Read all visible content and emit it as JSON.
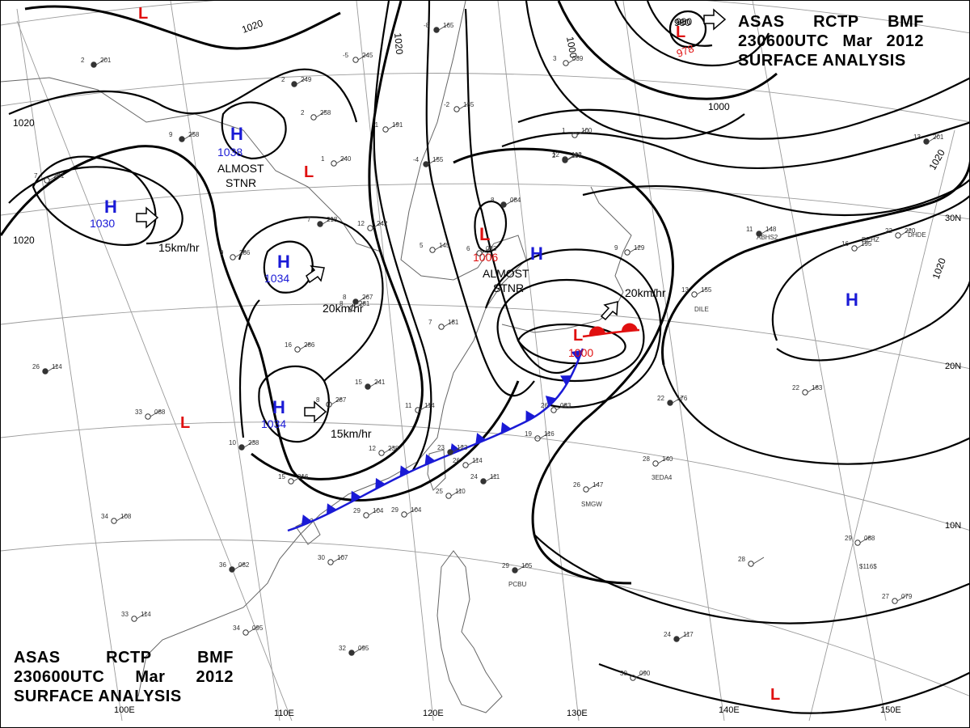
{
  "title": {
    "agency": "ASAS",
    "station": "RCTP",
    "office": "BMF",
    "time": "230600UTC",
    "month": "Mar",
    "year": "2012",
    "product": "SURFACE ANALYSIS"
  },
  "colors": {
    "high": "#1a1ad6",
    "low": "#e01010",
    "cold_front": "#1a1ad6",
    "warm_front": "#e01010",
    "isobar": "#000000",
    "grid": "#999999"
  },
  "isobar_labels": [
    "1020",
    "1020",
    "1020",
    "1020",
    "1020",
    "1000",
    "1000",
    "980",
    "1020"
  ],
  "pressure_systems": [
    {
      "type": "H",
      "value": "1038",
      "note_lines": [
        "ALMOST",
        "STNR"
      ]
    },
    {
      "type": "H",
      "value": "1030",
      "speed": "15km/hr"
    },
    {
      "type": "H",
      "value": "1034",
      "speed": "20km/hr"
    },
    {
      "type": "H",
      "value": "1034",
      "speed": "15km/hr"
    },
    {
      "type": "H",
      "value": ""
    },
    {
      "type": "H",
      "value": "",
      "note_lines": [
        "ALMOST",
        "STNR"
      ]
    },
    {
      "type": "L",
      "value": "1006"
    },
    {
      "type": "L",
      "value": "1000",
      "speed": "20km/hr"
    },
    {
      "type": "L",
      "value": "978",
      "extra": "980"
    },
    {
      "type": "L",
      "value": ""
    },
    {
      "type": "L",
      "value": ""
    },
    {
      "type": "L",
      "value": ""
    },
    {
      "type": "L",
      "value": ""
    }
  ],
  "lon_labels": [
    "100E",
    "110E",
    "120E",
    "130E",
    "140E",
    "150E"
  ],
  "lat_labels": [
    "30N",
    "20N",
    "10N"
  ],
  "ship_ids": [
    "ABHS2",
    "DEHZ",
    "DHDE",
    "DILE",
    "3EDA4",
    "SMGW",
    "PCBU",
    "$116$"
  ],
  "station_samples": [
    {
      "t": "26",
      "p": "114"
    },
    {
      "t": "33",
      "p": "088"
    },
    {
      "t": "34",
      "p": "108"
    },
    {
      "t": "36",
      "p": "082"
    },
    {
      "t": "33",
      "p": "114"
    },
    {
      "t": "34",
      "p": "095"
    },
    {
      "t": "32",
      "p": "095"
    },
    {
      "t": "30",
      "p": "107"
    },
    {
      "t": "29",
      "p": "104"
    },
    {
      "t": "29",
      "p": "105"
    },
    {
      "t": "26",
      "p": "147"
    },
    {
      "t": "28",
      "p": "140"
    },
    {
      "t": "22",
      "p": "176"
    },
    {
      "t": "22",
      "p": "183"
    },
    {
      "t": "13",
      "p": "155"
    },
    {
      "t": "11",
      "p": "148"
    },
    {
      "t": "16",
      "p": "195"
    },
    {
      "t": "22",
      "p": "220"
    },
    {
      "t": "13",
      "p": "201"
    },
    {
      "t": "29",
      "p": "088"
    },
    {
      "t": "27",
      "p": "079"
    },
    {
      "t": "24",
      "p": "117"
    },
    {
      "t": "30",
      "p": "090"
    },
    {
      "t": "28",
      "p": ""
    },
    {
      "t": "9",
      "p": "258"
    },
    {
      "t": "9",
      "p": "286"
    },
    {
      "t": "16",
      "p": "286"
    },
    {
      "t": "15",
      "p": "241"
    },
    {
      "t": "8",
      "p": "287"
    },
    {
      "t": "8",
      "p": "281"
    },
    {
      "t": "7",
      "p": "218"
    },
    {
      "t": "15",
      "p": "216"
    },
    {
      "t": "11",
      "p": "114"
    },
    {
      "t": "23",
      "p": "123"
    },
    {
      "t": "26",
      "p": "083"
    },
    {
      "t": "19",
      "p": "116"
    },
    {
      "t": "8",
      "p": "084"
    },
    {
      "t": "6",
      "p": "083"
    },
    {
      "t": "12",
      "p": "112"
    },
    {
      "t": "2",
      "p": "249"
    },
    {
      "t": "2",
      "p": "258"
    },
    {
      "t": "1",
      "p": "240"
    },
    {
      "t": "-4",
      "p": "155"
    },
    {
      "t": "-2",
      "p": "135"
    },
    {
      "t": "-1",
      "p": "191"
    },
    {
      "t": "-8",
      "p": "165"
    },
    {
      "t": "-5",
      "p": "245"
    },
    {
      "t": "7",
      "p": "201"
    },
    {
      "t": "2",
      "p": "201"
    },
    {
      "t": "3",
      "p": "039"
    },
    {
      "t": "1",
      "p": "100"
    },
    {
      "t": "2",
      "p": "118"
    },
    {
      "t": "9",
      "p": "129"
    },
    {
      "t": "5",
      "p": "145"
    },
    {
      "t": "10",
      "p": "238"
    },
    {
      "t": "12",
      "p": "242"
    },
    {
      "t": "7",
      "p": "181"
    },
    {
      "t": "8",
      "p": "267"
    },
    {
      "t": "12",
      "p": "238"
    },
    {
      "t": "25",
      "p": "110"
    },
    {
      "t": "24",
      "p": "111"
    },
    {
      "t": "26",
      "p": "114"
    },
    {
      "t": "29",
      "p": "104"
    }
  ]
}
